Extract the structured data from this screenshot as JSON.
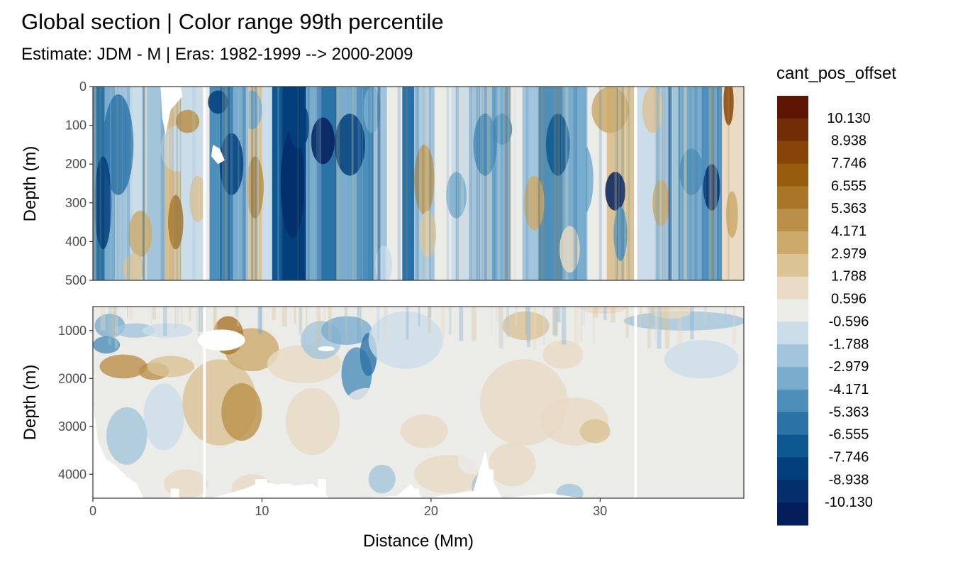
{
  "chart_data": {
    "type": "heatmap",
    "title": "Global section | Color range 99th percentile",
    "subtitle": "Estimate: JDM - M | Eras: 1982-1999 --> 2000-2009",
    "xlabel": "Distance (Mm)",
    "ylabel": "Depth (m)",
    "xlim": [
      0,
      38.5
    ],
    "x_ticks": [
      0,
      10,
      20,
      30
    ],
    "panels": [
      {
        "name": "upper",
        "ylim": [
          0,
          500
        ],
        "y_reversed": true,
        "y_ticks": [
          0,
          100,
          200,
          300,
          400,
          500
        ]
      },
      {
        "name": "lower",
        "ylim": [
          500,
          4500
        ],
        "y_reversed": true,
        "y_ticks": [
          1000,
          2000,
          3000,
          4000
        ]
      }
    ],
    "legend": {
      "title": "cant_pos_offset",
      "position": "right",
      "labels": [
        "10.130",
        "8.938",
        "7.746",
        "6.555",
        "5.363",
        "4.171",
        "2.979",
        "1.788",
        "0.596",
        "-0.596",
        "-1.788",
        "-2.979",
        "-4.171",
        "-5.363",
        "-6.555",
        "-7.746",
        "-8.938",
        "-10.130"
      ],
      "colors": [
        "#5c1503",
        "#732d06",
        "#874307",
        "#975b0e",
        "#a97628",
        "#ba9049",
        "#ccaa6b",
        "#dbc395",
        "#e8dac4",
        "#ebebe8",
        "#cbdde9",
        "#a3c5db",
        "#7aadcd",
        "#4d8fba",
        "#2b73a7",
        "#0e5891",
        "#033f7c",
        "#032d6b",
        "#051e5b"
      ]
    },
    "grid": true,
    "gap_lines_x": [
      6.6,
      32.1
    ]
  }
}
